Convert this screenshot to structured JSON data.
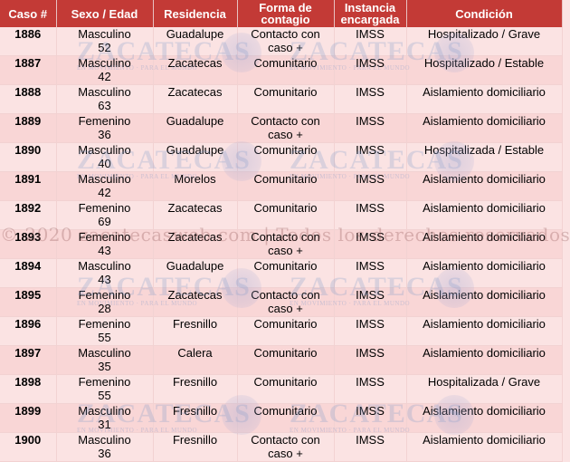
{
  "table": {
    "headers": {
      "caso": "Caso #",
      "sexo": "Sexo / Edad",
      "residencia": "Residencia",
      "forma": "Forma de contagio",
      "instancia": "Instancia encargada",
      "condicion": "Condición"
    },
    "rows": [
      {
        "caso": "1886",
        "sexo": "Masculino",
        "edad": "52",
        "residencia": "Guadalupe",
        "forma_1": "Contacto con",
        "forma_2": "caso +",
        "instancia": "IMSS",
        "condicion": "Hospitalizado / Grave"
      },
      {
        "caso": "1887",
        "sexo": "Masculino",
        "edad": "42",
        "residencia": "Zacatecas",
        "forma_1": "Comunitario",
        "forma_2": "",
        "instancia": "IMSS",
        "condicion": "Hospitalizado / Estable"
      },
      {
        "caso": "1888",
        "sexo": "Masculino",
        "edad": "63",
        "residencia": "Zacatecas",
        "forma_1": "Comunitario",
        "forma_2": "",
        "instancia": "IMSS",
        "condicion": "Aislamiento domiciliario"
      },
      {
        "caso": "1889",
        "sexo": "Femenino",
        "edad": "36",
        "residencia": "Guadalupe",
        "forma_1": "Contacto con",
        "forma_2": "caso +",
        "instancia": "IMSS",
        "condicion": "Aislamiento domiciliario"
      },
      {
        "caso": "1890",
        "sexo": "Masculino",
        "edad": "40",
        "residencia": "Guadalupe",
        "forma_1": "Comunitario",
        "forma_2": "",
        "instancia": "IMSS",
        "condicion": "Hospitalizada / Estable"
      },
      {
        "caso": "1891",
        "sexo": "Masculino",
        "edad": "42",
        "residencia": "Morelos",
        "forma_1": "Comunitario",
        "forma_2": "",
        "instancia": "IMSS",
        "condicion": "Aislamiento domiciliario"
      },
      {
        "caso": "1892",
        "sexo": "Femenino",
        "edad": "69",
        "residencia": "Zacatecas",
        "forma_1": "Comunitario",
        "forma_2": "",
        "instancia": "IMSS",
        "condicion": "Aislamiento domiciliario"
      },
      {
        "caso": "1893",
        "sexo": "Femenino",
        "edad": "43",
        "residencia": "Zacatecas",
        "forma_1": "Contacto con",
        "forma_2": "caso +",
        "instancia": "IMSS",
        "condicion": "Aislamiento domiciliario"
      },
      {
        "caso": "1894",
        "sexo": "Masculino",
        "edad": "43",
        "residencia": "Guadalupe",
        "forma_1": "Comunitario",
        "forma_2": "",
        "instancia": "IMSS",
        "condicion": "Aislamiento domiciliario"
      },
      {
        "caso": "1895",
        "sexo": "Femenino",
        "edad": "28",
        "residencia": "Zacatecas",
        "forma_1": "Contacto con",
        "forma_2": "caso +",
        "instancia": "IMSS",
        "condicion": "Aislamiento domiciliario"
      },
      {
        "caso": "1896",
        "sexo": "Femenino",
        "edad": "55",
        "residencia": "Fresnillo",
        "forma_1": "Comunitario",
        "forma_2": "",
        "instancia": "IMSS",
        "condicion": "Aislamiento domiciliario"
      },
      {
        "caso": "1897",
        "sexo": "Masculino",
        "edad": "35",
        "residencia": "Calera",
        "forma_1": "Comunitario",
        "forma_2": "",
        "instancia": "IMSS",
        "condicion": "Aislamiento domiciliario"
      },
      {
        "caso": "1898",
        "sexo": "Femenino",
        "edad": "55",
        "residencia": "Fresnillo",
        "forma_1": "Comunitario",
        "forma_2": "",
        "instancia": "IMSS",
        "condicion": "Hospitalizada / Grave"
      },
      {
        "caso": "1899",
        "sexo": "Masculino",
        "edad": "31",
        "residencia": "Fresnillo",
        "forma_1": "Comunitario",
        "forma_2": "",
        "instancia": "IMSS",
        "condicion": "Aislamiento domiciliario"
      },
      {
        "caso": "1900",
        "sexo": "Masculino",
        "edad": "36",
        "residencia": "Fresnillo",
        "forma_1": "Contacto con",
        "forma_2": "caso +",
        "instancia": "IMSS",
        "condicion": "Aislamiento domiciliario"
      }
    ]
  },
  "watermark": {
    "brand": "ZACATECAS",
    "brand_sub": "EN MOVIMIENTO · PARA EL MUNDO",
    "copyright": "© 2020 zacatecasweb.com | Todos los derechos reservados"
  }
}
